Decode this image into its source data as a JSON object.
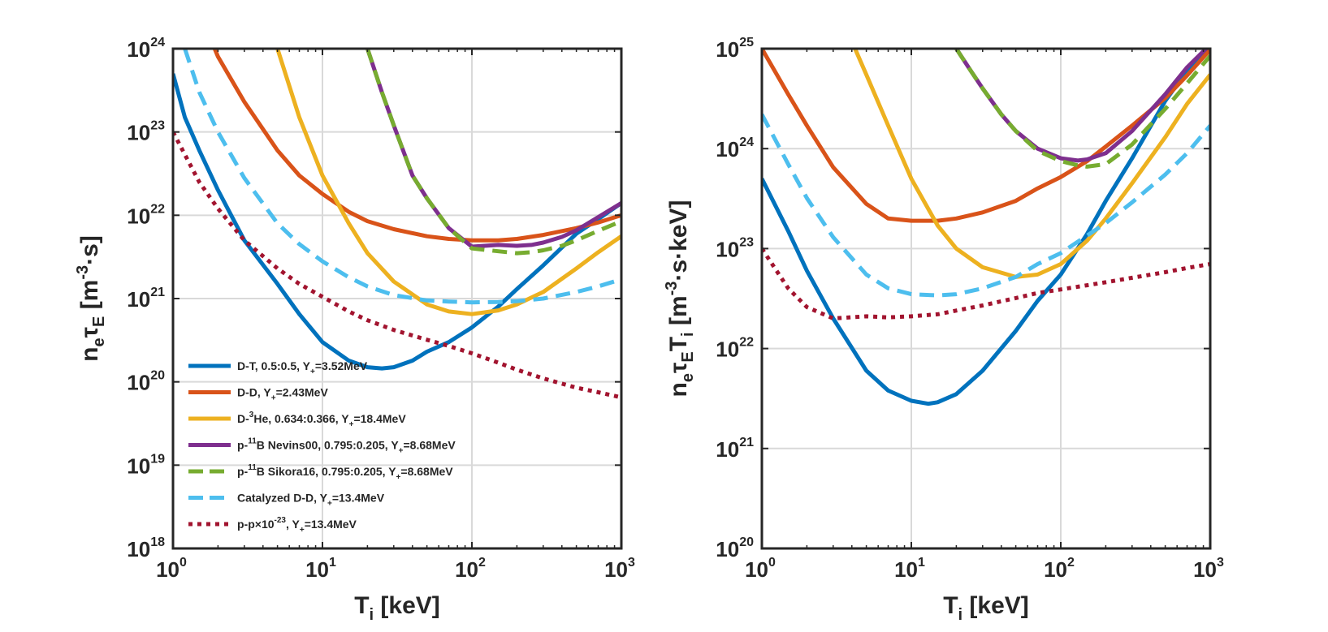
{
  "chart_data": [
    {
      "type": "line",
      "xlabel": "T_i [keV]",
      "ylabel": "n_e τ_E [m^-3·s]",
      "xscale": "log",
      "yscale": "log",
      "xlim": [
        1,
        1000
      ],
      "ylim": [
        1e+18,
        1e+24
      ],
      "x_ticks": [
        {
          "base": "10",
          "exp": "0"
        },
        {
          "base": "10",
          "exp": "1"
        },
        {
          "base": "10",
          "exp": "2"
        },
        {
          "base": "10",
          "exp": "3"
        }
      ],
      "y_ticks": [
        {
          "base": "10",
          "exp": "18"
        },
        {
          "base": "10",
          "exp": "19"
        },
        {
          "base": "10",
          "exp": "20"
        },
        {
          "base": "10",
          "exp": "21"
        },
        {
          "base": "10",
          "exp": "22"
        },
        {
          "base": "10",
          "exp": "23"
        },
        {
          "base": "10",
          "exp": "24"
        }
      ],
      "legend_position": "bottom-left",
      "series": [
        {
          "key": "dt",
          "x": [
            1,
            1.2,
            1.5,
            2,
            3,
            5,
            7,
            10,
            15,
            20,
            25,
            30,
            40,
            50,
            70,
            100,
            150,
            200,
            300,
            500,
            700,
            1000
          ],
          "y": [
            5e+23,
            1.5e+23,
            6e+22,
            2e+22,
            5e+21,
            1.5e+21,
            6.5e+20,
            3e+20,
            1.8e+20,
            1.5e+20,
            1.45e+20,
            1.5e+20,
            1.8e+20,
            2.3e+20,
            3e+20,
            4.5e+20,
            8e+20,
            1.3e+21,
            2.5e+21,
            6e+21,
            9e+21,
            1.4e+22
          ]
        },
        {
          "key": "dd",
          "x": [
            1.9,
            2,
            3,
            5,
            7,
            10,
            15,
            20,
            30,
            50,
            70,
            100,
            150,
            200,
            300,
            500,
            700,
            1000
          ],
          "y": [
            1e+24,
            8e+23,
            2.3e+23,
            6e+22,
            3e+22,
            1.8e+22,
            1.1e+22,
            8.5e+21,
            6.8e+21,
            5.6e+21,
            5.2e+21,
            5e+21,
            5e+21,
            5.2e+21,
            5.8e+21,
            7e+21,
            8.2e+21,
            1e+22
          ]
        },
        {
          "key": "dhe3",
          "x": [
            5,
            7,
            10,
            15,
            20,
            30,
            50,
            70,
            100,
            150,
            200,
            300,
            500,
            700,
            1000
          ],
          "y": [
            1e+24,
            1.5e+23,
            3e+22,
            8e+21,
            3.5e+21,
            1.6e+21,
            8.5e+20,
            7e+20,
            6.5e+20,
            7.2e+20,
            8.5e+20,
            1.2e+21,
            2.3e+21,
            3.6e+21,
            5.6e+21
          ]
        },
        {
          "key": "pb_nevins",
          "x": [
            20,
            25,
            30,
            40,
            50,
            70,
            100,
            150,
            200,
            250,
            300,
            400,
            500,
            700,
            1000
          ],
          "y": [
            1e+24,
            3e+23,
            1.2e+23,
            3e+22,
            1.6e+22,
            7e+21,
            4.2e+21,
            4.4e+21,
            4.3e+21,
            4.4e+21,
            4.7e+21,
            5.5e+21,
            6.6e+21,
            9.5e+21,
            1.4e+22
          ]
        },
        {
          "key": "pb_sikora",
          "x": [
            20,
            25,
            30,
            40,
            50,
            70,
            100,
            150,
            200,
            250,
            300,
            400,
            500,
            700,
            1000
          ],
          "y": [
            1e+24,
            3e+23,
            1.2e+23,
            3e+22,
            1.6e+22,
            7e+21,
            4e+21,
            3.7e+21,
            3.5e+21,
            3.6e+21,
            3.8e+21,
            4.3e+21,
            5e+21,
            6.5e+21,
            8.5e+21
          ]
        },
        {
          "key": "catdd",
          "x": [
            1.2,
            1.5,
            2,
            3,
            5,
            7,
            10,
            15,
            20,
            30,
            50,
            70,
            100,
            150,
            200,
            300,
            500,
            700,
            1000
          ],
          "y": [
            1e+24,
            3e+23,
            1e+23,
            2.8e+22,
            8e+21,
            4.5e+21,
            2.8e+21,
            1.8e+21,
            1.4e+21,
            1.1e+21,
            9.5e+20,
            9.2e+20,
            9e+20,
            9.1e+20,
            9.3e+20,
            1e+21,
            1.2e+21,
            1.4e+21,
            1.7e+21
          ]
        },
        {
          "key": "pp",
          "x": [
            1,
            1.5,
            2,
            3,
            5,
            7,
            10,
            15,
            20,
            30,
            50,
            70,
            100,
            150,
            200,
            300,
            500,
            700,
            1000
          ],
          "y": [
            1e+23,
            2.5e+22,
            1.2e+22,
            5e+21,
            2.3e+21,
            1.5e+21,
            1.05e+21,
            7e+20,
            5.5e+20,
            4.2e+20,
            3.2e+20,
            2.7e+20,
            2.2e+20,
            1.7e+20,
            1.4e+20,
            1.1e+20,
            8.5e+19,
            7.5e+19,
            6.5e+19
          ]
        }
      ]
    },
    {
      "type": "line",
      "xlabel": "T_i [keV]",
      "ylabel": "n_e τ_E T_i [m^-3·s·keV]",
      "xscale": "log",
      "yscale": "log",
      "xlim": [
        1,
        1000
      ],
      "ylim": [
        1e+20,
        1e+25
      ],
      "x_ticks": [
        {
          "base": "10",
          "exp": "0"
        },
        {
          "base": "10",
          "exp": "1"
        },
        {
          "base": "10",
          "exp": "2"
        },
        {
          "base": "10",
          "exp": "3"
        }
      ],
      "y_ticks": [
        {
          "base": "10",
          "exp": "20"
        },
        {
          "base": "10",
          "exp": "21"
        },
        {
          "base": "10",
          "exp": "22"
        },
        {
          "base": "10",
          "exp": "23"
        },
        {
          "base": "10",
          "exp": "24"
        },
        {
          "base": "10",
          "exp": "25"
        }
      ],
      "series": [
        {
          "key": "dt",
          "x": [
            1,
            1.5,
            2,
            3,
            5,
            7,
            10,
            13,
            15,
            20,
            30,
            50,
            70,
            100,
            150,
            200,
            300,
            500,
            700,
            1000
          ],
          "y": [
            5e+23,
            1.5e+23,
            6e+22,
            2e+22,
            6e+21,
            3.8e+21,
            3e+21,
            2.8e+21,
            2.9e+21,
            3.5e+21,
            6e+21,
            1.5e+22,
            3e+22,
            5.5e+22,
            1.4e+23,
            3e+23,
            8e+23,
            3e+24,
            6e+24,
            1e+25
          ]
        },
        {
          "key": "dd",
          "x": [
            1,
            1.5,
            2,
            3,
            5,
            7,
            10,
            15,
            20,
            30,
            50,
            70,
            100,
            150,
            200,
            300,
            500,
            700,
            1000
          ],
          "y": [
            1e+25,
            3.5e+24,
            1.7e+24,
            6.5e+23,
            2.8e+23,
            2e+23,
            1.9e+23,
            1.9e+23,
            2e+23,
            2.3e+23,
            3e+23,
            4e+23,
            5.2e+23,
            7.5e+23,
            1.05e+24,
            1.7e+24,
            3.2e+24,
            5.4e+24,
            9.8e+24
          ]
        },
        {
          "key": "dhe3",
          "x": [
            4.2,
            5,
            7,
            10,
            15,
            20,
            30,
            50,
            70,
            100,
            150,
            200,
            300,
            500,
            700,
            1000
          ],
          "y": [
            1e+25,
            5.5e+24,
            1.7e+24,
            5e+23,
            1.7e+23,
            1e+23,
            6.5e+22,
            5.2e+22,
            5.5e+22,
            7e+22,
            1.2e+23,
            2e+23,
            4.5e+23,
            1.3e+24,
            2.8e+24,
            5.5e+24
          ]
        },
        {
          "key": "pb_nevins",
          "x": [
            20,
            25,
            30,
            40,
            50,
            70,
            100,
            130,
            150,
            200,
            300,
            500,
            700,
            1000
          ],
          "y": [
            1e+25,
            6e+24,
            4e+24,
            2.2e+24,
            1.5e+24,
            1e+24,
            8e+23,
            7.6e+23,
            7.8e+23,
            9e+23,
            1.5e+24,
            3.5e+24,
            6.5e+24,
            1.1e+25
          ]
        },
        {
          "key": "pb_sikora",
          "x": [
            20,
            25,
            30,
            40,
            50,
            70,
            100,
            130,
            150,
            200,
            300,
            500,
            700,
            1000
          ],
          "y": [
            1e+25,
            6e+24,
            4e+24,
            2.2e+24,
            1.5e+24,
            9.5e+23,
            7.5e+23,
            6.8e+23,
            6.6e+23,
            7e+23,
            1.1e+24,
            2.5e+24,
            4.5e+24,
            8.5e+24
          ]
        },
        {
          "key": "catdd",
          "x": [
            1,
            1.5,
            2,
            3,
            5,
            7,
            10,
            15,
            20,
            30,
            50,
            70,
            100,
            150,
            200,
            300,
            500,
            700,
            1000
          ],
          "y": [
            2.2e+24,
            7e+23,
            3.2e+23,
            1.3e+23,
            5.5e+22,
            4e+22,
            3.5e+22,
            3.4e+22,
            3.5e+22,
            4e+22,
            5.2e+22,
            7e+22,
            9e+22,
            1.35e+23,
            1.8e+23,
            2.9e+23,
            5.5e+23,
            9e+23,
            1.7e+24
          ]
        },
        {
          "key": "pp",
          "x": [
            1,
            1.5,
            2,
            3,
            5,
            7,
            10,
            15,
            20,
            30,
            50,
            70,
            100,
            150,
            200,
            300,
            500,
            700,
            1000
          ],
          "y": [
            1e+23,
            4e+22,
            2.6e+22,
            2e+22,
            2.1e+22,
            2.05e+22,
            2.1e+22,
            2.2e+22,
            2.4e+22,
            2.7e+22,
            3.2e+22,
            3.6e+22,
            3.9e+22,
            4.3e+22,
            4.6e+22,
            5.1e+22,
            5.8e+22,
            6.4e+22,
            7e+22
          ]
        }
      ]
    }
  ],
  "legend": [
    {
      "key": "dt",
      "color": "#0072BD",
      "dash": "solid",
      "parts": [
        [
          "D-T, 0.5:0.5, Y",
          ""
        ],
        [
          "+",
          "sub"
        ],
        [
          "=3.52MeV",
          ""
        ]
      ]
    },
    {
      "key": "dd",
      "color": "#D95319",
      "dash": "solid",
      "parts": [
        [
          "D-D, Y",
          ""
        ],
        [
          "+",
          "sub"
        ],
        [
          "=2.43MeV",
          ""
        ]
      ]
    },
    {
      "key": "dhe3",
      "color": "#EDB120",
      "dash": "solid",
      "parts": [
        [
          "D-",
          ""
        ],
        [
          "3",
          "sup"
        ],
        [
          "He, 0.634:0.366, Y",
          ""
        ],
        [
          "+",
          "sub"
        ],
        [
          "=18.4MeV",
          ""
        ]
      ]
    },
    {
      "key": "pb_nevins",
      "color": "#7E2F8E",
      "dash": "solid",
      "parts": [
        [
          "p-",
          ""
        ],
        [
          "11",
          "sup"
        ],
        [
          "B Nevins00, 0.795:0.205, Y",
          ""
        ],
        [
          "+",
          "sub"
        ],
        [
          "=8.68MeV",
          ""
        ]
      ]
    },
    {
      "key": "pb_sikora",
      "color": "#77AC30",
      "dash": "dashed",
      "parts": [
        [
          "p-",
          ""
        ],
        [
          "11",
          "sup"
        ],
        [
          "B Sikora16, 0.795:0.205, Y",
          ""
        ],
        [
          "+",
          "sub"
        ],
        [
          "=8.68MeV",
          ""
        ]
      ]
    },
    {
      "key": "catdd",
      "color": "#4DBEEE",
      "dash": "dashed",
      "parts": [
        [
          "Catalyzed D-D, Y",
          ""
        ],
        [
          "+",
          "sub"
        ],
        [
          "=13.4MeV",
          ""
        ]
      ]
    },
    {
      "key": "pp",
      "color": "#A2142F",
      "dash": "dotted",
      "parts": [
        [
          "p-p",
          ""
        ],
        [
          "×10",
          ""
        ],
        [
          "-23",
          "sup"
        ],
        [
          ", Y",
          ""
        ],
        [
          "+",
          "sub"
        ],
        [
          "=13.4MeV",
          ""
        ]
      ]
    }
  ]
}
